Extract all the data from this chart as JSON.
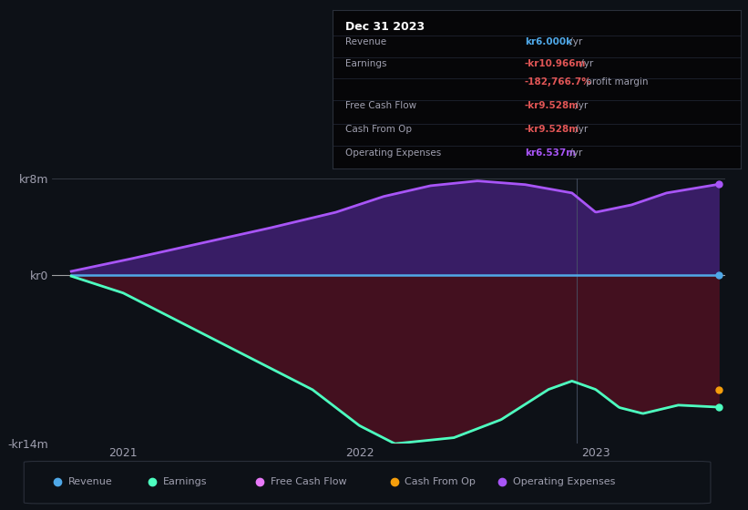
{
  "bg_color": "#0d1117",
  "ylabel_top": "kr8m",
  "ylabel_zero": "kr0",
  "ylabel_bottom": "-kr14m",
  "ylim": [
    -14,
    8
  ],
  "xlim": [
    2020.7,
    2023.55
  ],
  "xticks": [
    2021,
    2022,
    2023
  ],
  "revenue_color": "#4fa8e8",
  "earnings_line_color": "#4dffc0",
  "op_exp_line_color": "#a855f7",
  "cash_from_op_color": "#f59e0b",
  "divider_x": 2022.92,
  "info_box": {
    "date": "Dec 31 2023",
    "rows": [
      {
        "label": "Revenue",
        "value": "kr6.000k",
        "value_color": "#4fa8e8",
        "suffix": " /yr",
        "extra": ""
      },
      {
        "label": "Earnings",
        "value": "-kr10.966m",
        "value_color": "#e05555",
        "suffix": " /yr",
        "extra": ""
      },
      {
        "label": "",
        "value": "-182,766.7%",
        "value_color": "#e05555",
        "suffix": " profit margin",
        "extra": ""
      },
      {
        "label": "Free Cash Flow",
        "value": "-kr9.528m",
        "value_color": "#e05555",
        "suffix": " /yr",
        "extra": ""
      },
      {
        "label": "Cash From Op",
        "value": "-kr9.528m",
        "value_color": "#e05555",
        "suffix": " /yr",
        "extra": ""
      },
      {
        "label": "Operating Expenses",
        "value": "kr6.537m",
        "value_color": "#a855f7",
        "suffix": " /yr",
        "extra": ""
      }
    ]
  },
  "legend_items": [
    {
      "label": "Revenue",
      "color": "#4fa8e8"
    },
    {
      "label": "Earnings",
      "color": "#4dffc0"
    },
    {
      "label": "Free Cash Flow",
      "color": "#e879f9"
    },
    {
      "label": "Cash From Op",
      "color": "#f59e0b"
    },
    {
      "label": "Operating Expenses",
      "color": "#a855f7"
    }
  ]
}
